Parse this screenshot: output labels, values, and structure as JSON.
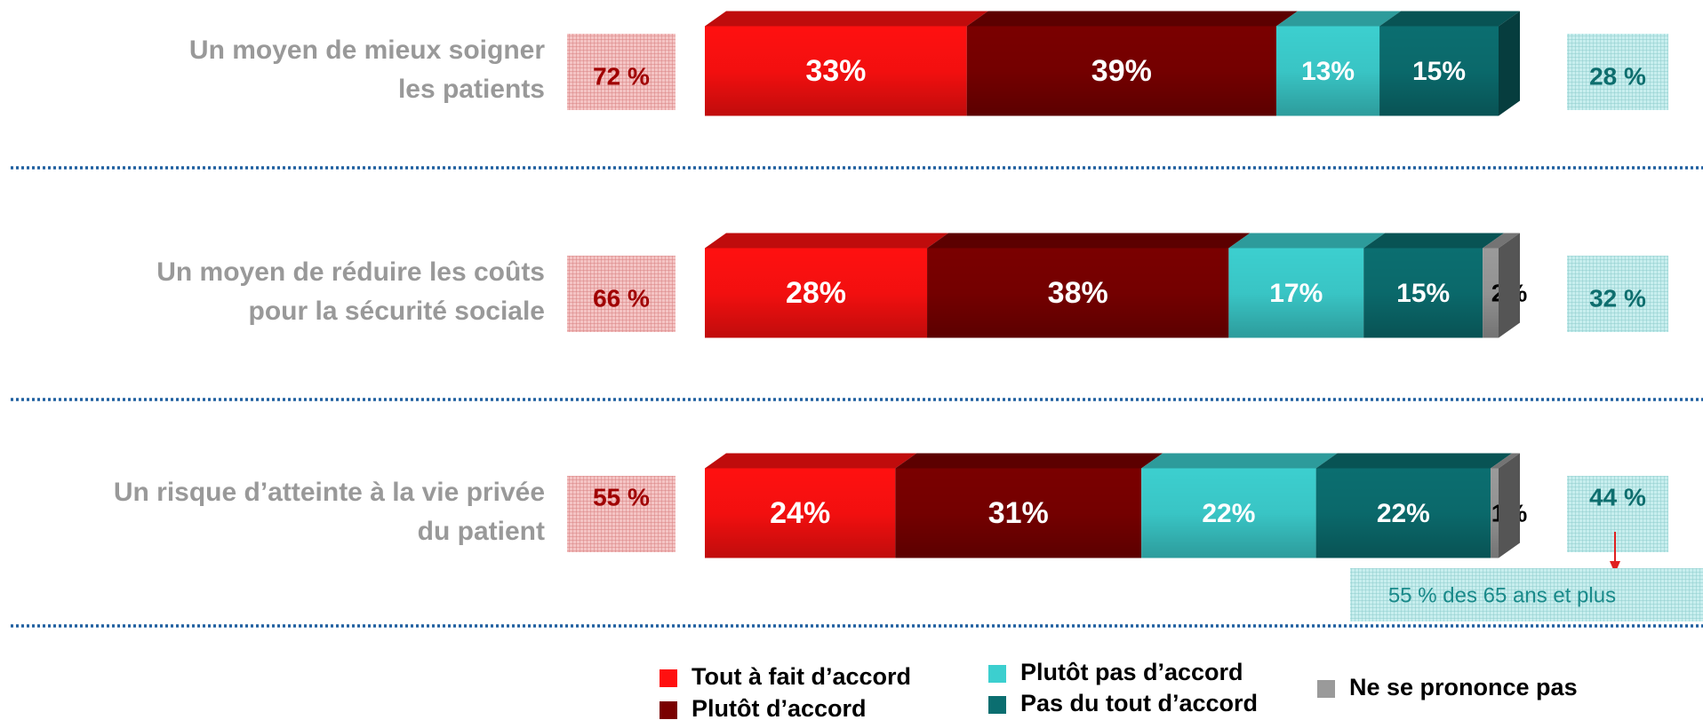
{
  "chart_data": {
    "type": "stacked_bar_horizontal",
    "categories": [
      [
        "Un moyen de mieux soigner",
        "les patients"
      ],
      [
        "Un moyen de réduire les coûts",
        "pour la sécurité sociale"
      ],
      [
        "Un risque d’atteinte à la vie privée",
        "du patient"
      ]
    ],
    "xlim": [
      0,
      100
    ],
    "series": [
      {
        "name": "Tout à fait d’accord",
        "color": "#ff1010",
        "values": [
          33,
          28,
          24
        ],
        "value_labels": [
          "33%",
          "28%",
          "24%"
        ]
      },
      {
        "name": "Plutôt d’accord",
        "color": "#7a0000",
        "values": [
          39,
          38,
          31
        ],
        "value_labels": [
          "39%",
          "38%",
          "31%"
        ]
      },
      {
        "name": "Plutôt pas d’accord",
        "color": "#3ccfcf",
        "values": [
          13,
          17,
          22
        ],
        "value_labels": [
          "13%",
          "17%",
          "22%"
        ]
      },
      {
        "name": "Pas du tout d’accord",
        "color": "#0b6e70",
        "values": [
          15,
          15,
          22
        ],
        "value_labels": [
          "15%",
          "15%",
          "22%"
        ]
      },
      {
        "name": "Ne se prononce pas",
        "color": "#9a9a9a",
        "values": [
          null,
          2,
          1
        ],
        "value_labels": [
          null,
          "2%",
          "1%"
        ]
      }
    ],
    "totals_agree": {
      "values": [
        72,
        66,
        55
      ],
      "value_labels": [
        "72 %",
        "66 %",
        "55 %"
      ]
    },
    "totals_disagree": {
      "values": [
        28,
        32,
        44
      ],
      "value_labels": [
        "28 %",
        "32 %",
        "44 %"
      ]
    },
    "annotation": "55 % des 65 ans et plus"
  }
}
